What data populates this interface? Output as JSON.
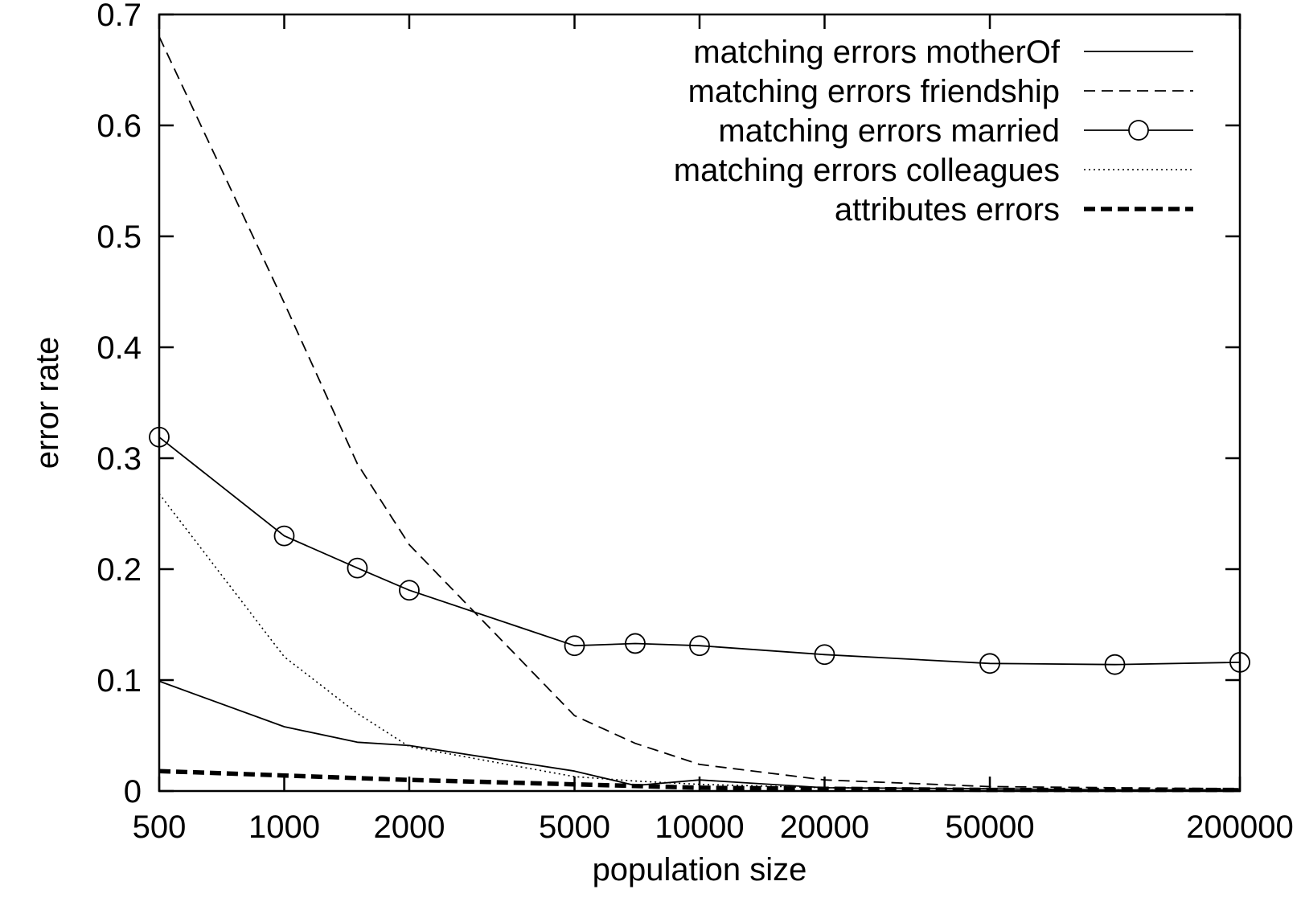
{
  "chart_data": {
    "type": "line",
    "title": "",
    "xlabel": "population size",
    "ylabel": "error rate",
    "xscale": "log",
    "xlim": [
      500,
      200000
    ],
    "ylim": [
      0,
      0.7
    ],
    "x_ticks": [
      500,
      1000,
      2000,
      5000,
      10000,
      20000,
      50000,
      200000
    ],
    "x_tick_labels": [
      "500",
      "1000",
      "2000",
      "5000",
      "10000",
      "20000",
      "50000",
      "200000"
    ],
    "y_ticks": [
      0,
      0.1,
      0.2,
      0.3,
      0.4,
      0.5,
      0.6,
      0.7
    ],
    "y_tick_labels": [
      "0",
      "0.1",
      "0.2",
      "0.3",
      "0.4",
      "0.5",
      "0.6",
      "0.7"
    ],
    "grid": false,
    "legend_position": "top-right",
    "series": [
      {
        "name": "matching errors motherOf",
        "style": "solid",
        "x": [
          500,
          1000,
          1500,
          2000,
          5000,
          7000,
          10000,
          20000,
          50000,
          100000,
          200000
        ],
        "y": [
          0.099,
          0.058,
          0.044,
          0.041,
          0.018,
          0.005,
          0.01,
          0.003,
          0.002,
          0.001,
          0.001
        ]
      },
      {
        "name": "matching errors friendship",
        "style": "dashed",
        "x": [
          500,
          1000,
          1500,
          2000,
          5000,
          7000,
          10000,
          20000,
          50000,
          100000,
          200000
        ],
        "y": [
          0.68,
          0.44,
          0.295,
          0.222,
          0.068,
          0.043,
          0.024,
          0.01,
          0.004,
          0.003,
          0.002
        ]
      },
      {
        "name": "matching errors married",
        "style": "solid-circles",
        "x": [
          500,
          1000,
          1500,
          2000,
          5000,
          7000,
          10000,
          20000,
          50000,
          100000,
          200000
        ],
        "y": [
          0.319,
          0.23,
          0.201,
          0.181,
          0.131,
          0.133,
          0.131,
          0.123,
          0.115,
          0.114,
          0.116
        ]
      },
      {
        "name": "matching errors colleagues",
        "style": "dotted",
        "x": [
          500,
          1000,
          1500,
          2000,
          5000,
          7000,
          10000,
          20000,
          50000,
          100000,
          200000
        ],
        "y": [
          0.268,
          0.121,
          0.07,
          0.04,
          0.013,
          0.009,
          0.006,
          0.003,
          0.002,
          0.001,
          0.001
        ]
      },
      {
        "name": "attributes errors",
        "style": "thick-dashed",
        "x": [
          500,
          1000,
          2000,
          5000,
          10000,
          20000,
          50000,
          100000,
          200000
        ],
        "y": [
          0.018,
          0.014,
          0.01,
          0.006,
          0.003,
          0.002,
          0.001,
          0.001,
          0.001
        ]
      }
    ]
  }
}
